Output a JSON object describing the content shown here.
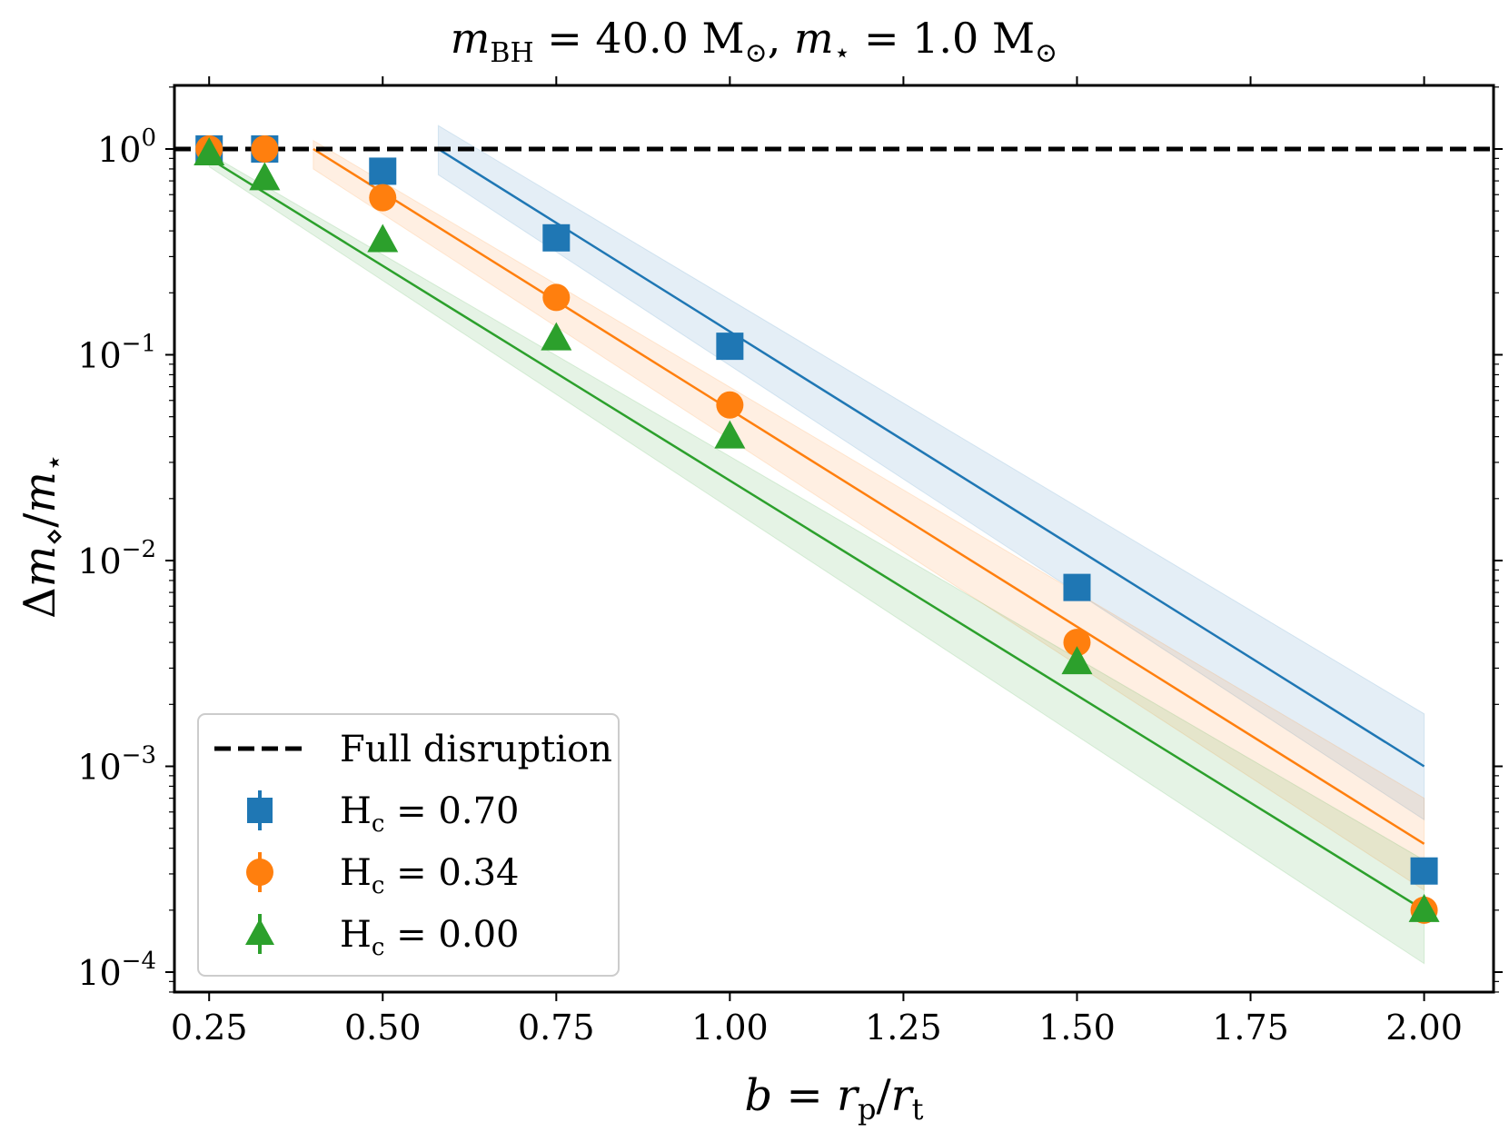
{
  "chart_data": {
    "type": "scatter",
    "title": {
      "m_symbol": "m",
      "bh_sub": "BH",
      "eq1": " = 40.0 M",
      "sun": "⊙",
      "comma": ", ",
      "star_sub": "⋆",
      "eq2": " = 1.0 M"
    },
    "xlabel": {
      "b": "b",
      "eq": " = ",
      "r1": "r",
      "p_sub": "p",
      "slash": "/",
      "r2": "r",
      "t_sub": "t"
    },
    "ylabel": {
      "delta": "Δ",
      "m1": "m",
      "diamond_sub": "⋄",
      "slash": "/",
      "m2": "m",
      "star_sub": "⋆"
    },
    "x_ticks": [
      "0.25",
      "0.50",
      "0.75",
      "1.00",
      "1.25",
      "1.50",
      "1.75",
      "2.00"
    ],
    "x_tick_values": [
      0.25,
      0.5,
      0.75,
      1.0,
      1.25,
      1.5,
      1.75,
      2.0
    ],
    "xlim": [
      0.2,
      2.1
    ],
    "ylim": [
      7e-05,
      2.0
    ],
    "yscale": "log",
    "y_ticks": [
      {
        "value": 1,
        "base": "10",
        "exp": "0"
      },
      {
        "value": 0.1,
        "base": "10",
        "exp": "−1"
      },
      {
        "value": 0.01,
        "base": "10",
        "exp": "−2"
      },
      {
        "value": 0.001,
        "base": "10",
        "exp": "−3"
      },
      {
        "value": 0.0001,
        "base": "10",
        "exp": "−4"
      }
    ],
    "reference_line": {
      "label": "Full disruption",
      "y": 1.0,
      "color": "#000000"
    },
    "series": [
      {
        "name": "H_c = 0.70",
        "label_main": "H",
        "label_sub": "c",
        "label_val": " = 0.70",
        "color": "#1f77b4",
        "marker": "square",
        "x": [
          0.25,
          0.33,
          0.5,
          0.75,
          1.0,
          1.5,
          2.0
        ],
        "y": [
          1.0,
          1.0,
          0.78,
          0.37,
          0.11,
          0.0074,
          0.00031
        ],
        "fit": {
          "x0": 0.58,
          "x1": 2.0,
          "y0": 1.0,
          "y1": 0.001
        },
        "band": {
          "upper": [
            1.3,
            0.0018
          ],
          "lower": [
            0.75,
            0.00055
          ]
        }
      },
      {
        "name": "H_c = 0.34",
        "label_main": "H",
        "label_sub": "c",
        "label_val": " = 0.34",
        "color": "#ff7f0e",
        "marker": "circle",
        "x": [
          0.25,
          0.33,
          0.5,
          0.75,
          1.0,
          1.5,
          2.0
        ],
        "y": [
          1.0,
          1.0,
          0.58,
          0.19,
          0.057,
          0.004,
          0.0002
        ],
        "fit": {
          "x0": 0.4,
          "x1": 2.0,
          "y0": 1.0,
          "y1": 0.00042
        },
        "band": {
          "upper": [
            1.1,
            0.0007
          ],
          "lower": [
            0.8,
            0.00025
          ]
        }
      },
      {
        "name": "H_c = 0.00",
        "label_main": "H",
        "label_sub": "c",
        "label_val": " = 0.00",
        "color": "#2ca02c",
        "marker": "triangle",
        "x": [
          0.25,
          0.33,
          0.5,
          0.75,
          1.0,
          1.5,
          2.0
        ],
        "y": [
          0.95,
          0.72,
          0.36,
          0.12,
          0.04,
          0.0032,
          0.0002
        ],
        "fit": {
          "x0": 0.25,
          "x1": 2.0,
          "y0": 0.9,
          "y1": 0.0002
        },
        "band": {
          "upper": [
            0.95,
            0.00035
          ],
          "lower": [
            0.82,
            0.00011
          ]
        }
      }
    ],
    "legend_position": "lower-left"
  }
}
